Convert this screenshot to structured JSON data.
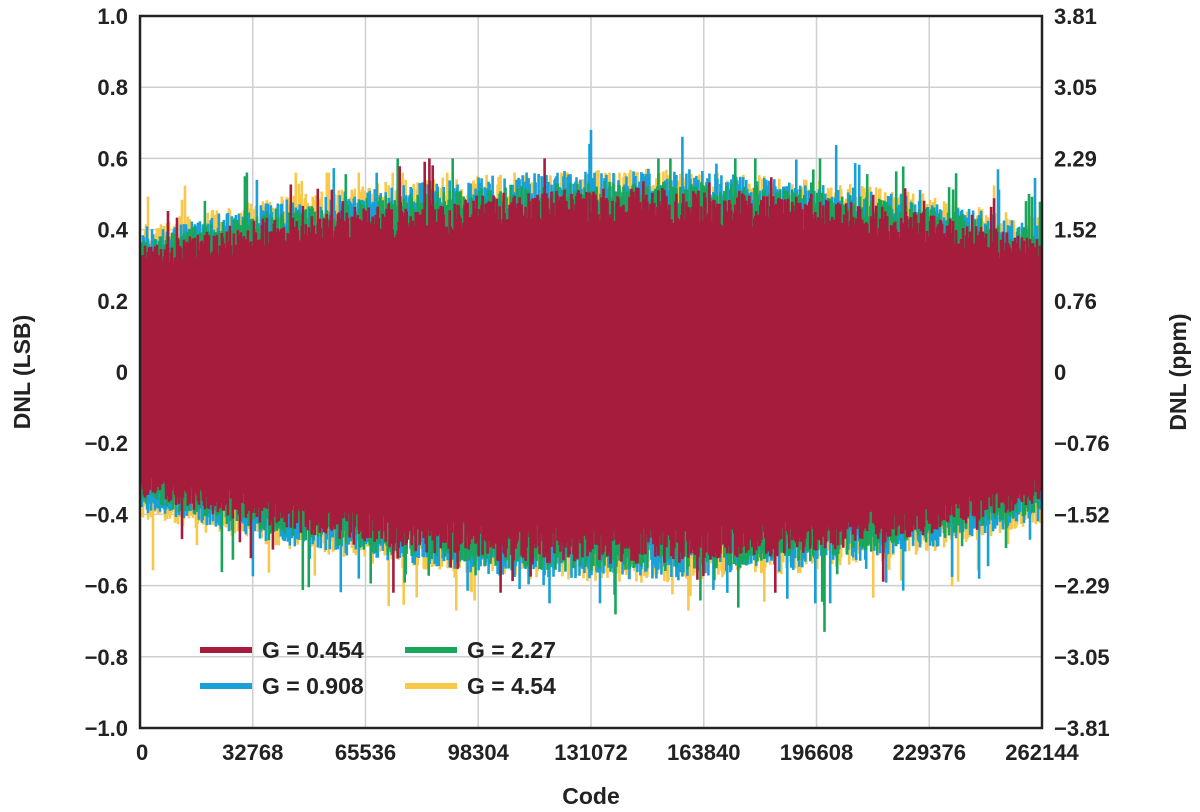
{
  "chart_data": {
    "type": "bar",
    "xlabel": "Code",
    "ylabel_left": "DNL (LSB)",
    "ylabel_right": "DNL (ppm)",
    "xlim": [
      0,
      262144
    ],
    "ylim": [
      -1.0,
      1.0
    ],
    "grid": true,
    "legend_position": "bottom-left",
    "x_ticks": [
      "0",
      "32768",
      "65536",
      "98304",
      "131072",
      "163840",
      "196608",
      "229376",
      "262144"
    ],
    "y_ticks_left": [
      "1.0",
      "0.8",
      "0.6",
      "0.4",
      "0.2",
      "0",
      "−0.2",
      "−0.4",
      "−0.6",
      "−0.8",
      "−1.0"
    ],
    "y_ticks_right": [
      "3.81",
      "3.05",
      "2.29",
      "1.52",
      "0.76",
      "0",
      "−0.76",
      "−1.52",
      "−2.29",
      "−3.05",
      "−3.81"
    ],
    "series": [
      {
        "name": "G = 0.454",
        "color": "#a61c3c",
        "envelope_upper": [
          0.34,
          0.42,
          0.46,
          0.49,
          0.5,
          0.48,
          0.44,
          0.36
        ],
        "envelope_lower": [
          -0.34,
          -0.42,
          -0.48,
          -0.52,
          -0.52,
          -0.5,
          -0.45,
          -0.36
        ],
        "peak_max": 0.6,
        "peak_min": -0.62
      },
      {
        "name": "G = 2.27",
        "color": "#1aa65a",
        "envelope_upper": [
          0.36,
          0.44,
          0.48,
          0.51,
          0.52,
          0.5,
          0.46,
          0.38
        ],
        "envelope_lower": [
          -0.36,
          -0.44,
          -0.5,
          -0.54,
          -0.54,
          -0.52,
          -0.47,
          -0.38
        ],
        "peak_max": 0.6,
        "peak_min": -0.73
      },
      {
        "name": "G = 0.908",
        "color": "#19a0d6",
        "envelope_upper": [
          0.38,
          0.46,
          0.51,
          0.54,
          0.55,
          0.52,
          0.48,
          0.4
        ],
        "envelope_lower": [
          -0.38,
          -0.46,
          -0.52,
          -0.56,
          -0.56,
          -0.54,
          -0.49,
          -0.4
        ],
        "peak_max": 0.68,
        "peak_min": -0.65
      },
      {
        "name": "G = 4.54",
        "color": "#f8c84a",
        "envelope_upper": [
          0.4,
          0.47,
          0.52,
          0.54,
          0.55,
          0.53,
          0.49,
          0.42
        ],
        "envelope_lower": [
          -0.4,
          -0.47,
          -0.53,
          -0.56,
          -0.57,
          -0.55,
          -0.5,
          -0.41
        ],
        "peak_max": 0.56,
        "peak_min": -0.67
      }
    ]
  }
}
